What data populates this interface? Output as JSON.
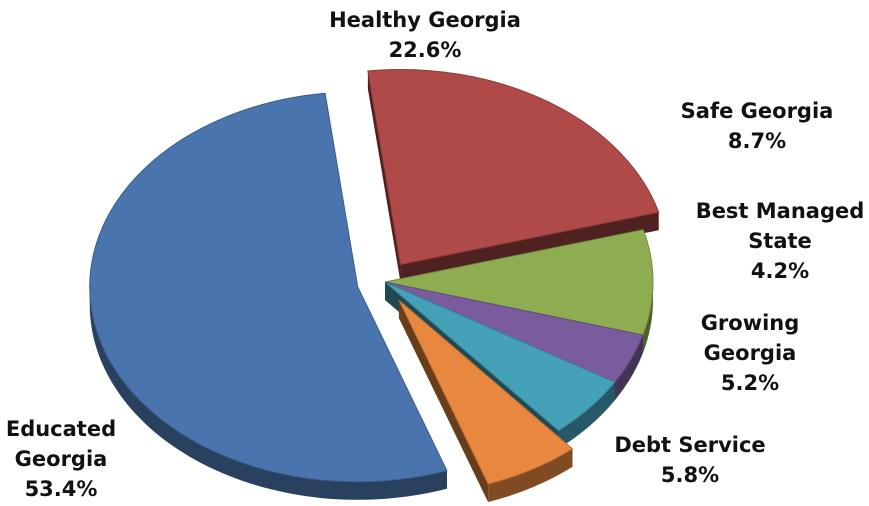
{
  "chart_data": {
    "type": "pie",
    "title": "",
    "slices": [
      {
        "name": "Healthy Georgia",
        "label_lines": [
          "Healthy Georgia"
        ],
        "value": 22.6,
        "value_label": "22.6%",
        "color": "#b04a48",
        "exploded": true
      },
      {
        "name": "Safe Georgia",
        "label_lines": [
          "Safe Georgia"
        ],
        "value": 8.7,
        "value_label": "8.7%",
        "color": "#8dad50",
        "exploded": false
      },
      {
        "name": "Best Managed State",
        "label_lines": [
          "Best Managed",
          "State"
        ],
        "value": 4.2,
        "value_label": "4.2%",
        "color": "#7a5c9e",
        "exploded": false
      },
      {
        "name": "Growing Georgia",
        "label_lines": [
          "Growing",
          "Georgia"
        ],
        "value": 5.2,
        "value_label": "5.2%",
        "color": "#45a1b8",
        "exploded": false
      },
      {
        "name": "Debt Service",
        "label_lines": [
          "Debt Service"
        ],
        "value": 5.8,
        "value_label": "5.8%",
        "color": "#e8883f",
        "exploded": true
      },
      {
        "name": "Educated Georgia",
        "label_lines": [
          "Educated",
          "Georgia"
        ],
        "value": 53.4,
        "value_label": "53.4%",
        "color": "#4a74ad",
        "exploded": true
      }
    ],
    "style": "3d-exploded",
    "legend": "none"
  }
}
